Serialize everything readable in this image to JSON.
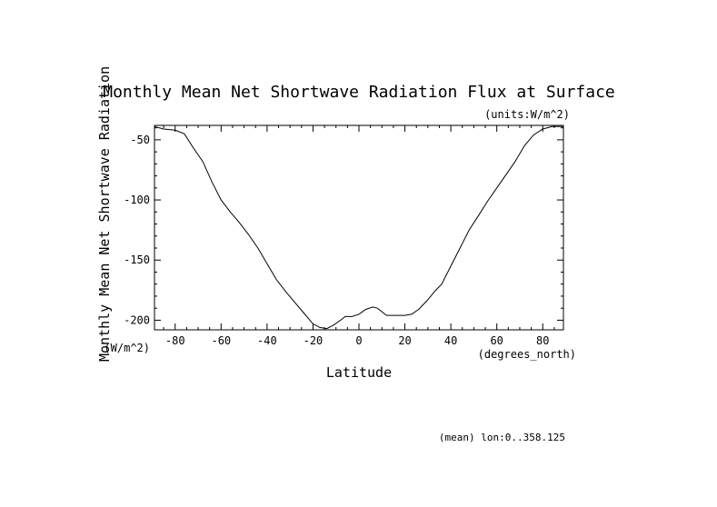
{
  "chart_data": {
    "type": "line",
    "title": "Monthly Mean Net Shortwave Radiation Flux at Surface",
    "units_label": "(units:W/m^2)",
    "xlabel": "Latitude",
    "x_units": "(degrees_north)",
    "ylabel": "Monthly Mean Net Shortwave Radiation",
    "y_units": "(W/m^2)",
    "footnote": "(mean) lon:0..358.125",
    "xlim": [
      -89.0,
      89.0
    ],
    "ylim": [
      -208.0,
      -38.0
    ],
    "x_ticks": [
      -80,
      -60,
      -40,
      -20,
      0,
      20,
      40,
      60,
      80
    ],
    "x_tick_labels": [
      "-80",
      "-60",
      "-40",
      "-20",
      "0",
      "20",
      "40",
      "60",
      "80"
    ],
    "y_ticks": [
      -50,
      -100,
      -150,
      -200
    ],
    "y_tick_labels": [
      "-50",
      "-100",
      "-150",
      "-200"
    ],
    "grid": false,
    "line_color": "#000000",
    "series": [
      {
        "x": [
          -89,
          -85,
          -80,
          -76,
          -72,
          -68,
          -64,
          -60,
          -56,
          -52,
          -48,
          -44,
          -40,
          -36,
          -32,
          -28,
          -24,
          -20,
          -17,
          -14,
          -11,
          -8,
          -6,
          -3,
          0,
          3,
          6,
          8,
          10,
          12,
          16,
          20,
          23,
          26,
          30,
          33,
          36,
          40,
          44,
          48,
          52,
          56,
          60,
          64,
          68,
          72,
          76,
          80,
          84,
          89
        ],
        "y": [
          -39,
          -41,
          -42,
          -45,
          -57,
          -68,
          -85,
          -100,
          -110,
          -119,
          -129,
          -140,
          -153,
          -166,
          -176,
          -185,
          -194,
          -203,
          -206,
          -207,
          -204,
          -200,
          -197,
          -197,
          -195,
          -191,
          -189,
          -190,
          -193,
          -196,
          -196,
          -196,
          -195,
          -191,
          -183,
          -176,
          -170,
          -155,
          -140,
          -125,
          -113,
          -101,
          -90,
          -79,
          -68,
          -55,
          -46,
          -41,
          -39,
          -39
        ]
      }
    ]
  }
}
